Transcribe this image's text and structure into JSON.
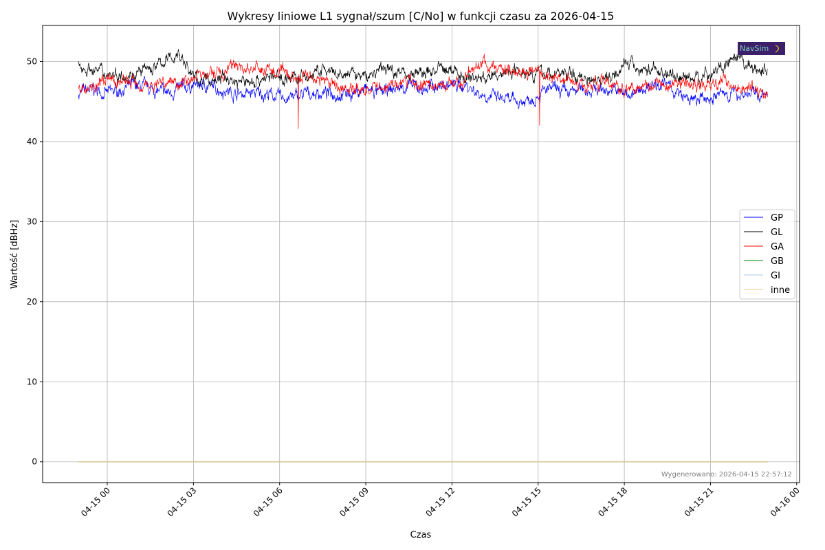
{
  "chart_data": {
    "type": "line",
    "title": "Wykresy liniowe L1 sygnał/szum [C/No] w funkcji czasu za 2026-04-15",
    "xlabel": "Czas",
    "ylabel": "Wartość [dBHz]",
    "x_unit": "hours from 2026-04-15 00:00",
    "xlim": [
      -2.25,
      24.1
    ],
    "ylim": [
      -2.6,
      54.5
    ],
    "grid": true,
    "legend_position": "center-right",
    "x_ticks": [
      {
        "value": 0,
        "label": "04-15 00"
      },
      {
        "value": 3,
        "label": "04-15 03"
      },
      {
        "value": 6,
        "label": "04-15 06"
      },
      {
        "value": 9,
        "label": "04-15 09"
      },
      {
        "value": 12,
        "label": "04-15 12"
      },
      {
        "value": 15,
        "label": "04-15 15"
      },
      {
        "value": 18,
        "label": "04-15 18"
      },
      {
        "value": 21,
        "label": "04-15 21"
      },
      {
        "value": 24,
        "label": "04-16 00"
      }
    ],
    "y_ticks": [
      {
        "value": 0,
        "label": "0"
      },
      {
        "value": 10,
        "label": "10"
      },
      {
        "value": 20,
        "label": "20"
      },
      {
        "value": 30,
        "label": "30"
      },
      {
        "value": 40,
        "label": "40"
      },
      {
        "value": 50,
        "label": "50"
      }
    ],
    "x_start": -1,
    "x_step": 0.5,
    "series": [
      {
        "name": "GP",
        "color": "#0000ff",
        "values": [
          46,
          46.5,
          46,
          46.5,
          47,
          46.5,
          46,
          46.5,
          47,
          47,
          46.5,
          46,
          46,
          46,
          45.5,
          45.5,
          46,
          46,
          46,
          46,
          46.5,
          46,
          46.5,
          47,
          46.5,
          47,
          47,
          47,
          46,
          45.5,
          45,
          45,
          46,
          46.5,
          46,
          46.5,
          46.5,
          46.5,
          46,
          46,
          47.5,
          47,
          45.5,
          45,
          45.5,
          46,
          46,
          46,
          45.5
        ]
      },
      {
        "name": "GL",
        "color": "#000000",
        "values": [
          49.5,
          49,
          48.5,
          48.5,
          48.5,
          49,
          50,
          51,
          48,
          47.5,
          48,
          47.5,
          47.5,
          48,
          48,
          48,
          48,
          49,
          48,
          48.5,
          48,
          49,
          49,
          48.5,
          48.5,
          49,
          49,
          48,
          48,
          48,
          49,
          49,
          48.5,
          48.5,
          48.5,
          48,
          48,
          48,
          50,
          49,
          49,
          48.5,
          48,
          48,
          48.5,
          49.5,
          50,
          49,
          49
        ]
      },
      {
        "name": "GA",
        "color": "#ff0000",
        "values": [
          46.5,
          47,
          47.5,
          47.5,
          47.5,
          47,
          47.5,
          47.5,
          48,
          48.5,
          48.5,
          49.5,
          49,
          49,
          48.5,
          48,
          48.5,
          47.5,
          47,
          46.5,
          46.5,
          47,
          47,
          47.5,
          47,
          47,
          47,
          48,
          50,
          49,
          49,
          49,
          48.5,
          48,
          48,
          47,
          47.5,
          47,
          46.5,
          47,
          47.5,
          47,
          47.5,
          47,
          47,
          47.5,
          47,
          46.5,
          46
        ],
        "spikes": [
          {
            "x": 6.65,
            "y": 41.6
          },
          {
            "x": 15.05,
            "y": 42.0
          }
        ]
      },
      {
        "name": "GB",
        "color": "#008000",
        "values": [
          0,
          0
        ]
      },
      {
        "name": "GI",
        "color": "#a6c8e8",
        "values": [
          0,
          0
        ]
      },
      {
        "name": "inne",
        "color": "#f5c88a",
        "values": [
          0,
          0
        ]
      }
    ],
    "flat_range": [
      -1,
      23
    ],
    "footer": "Wygenerowano: 2026-04-15 22:57:12",
    "logo_text": "NavSim"
  }
}
